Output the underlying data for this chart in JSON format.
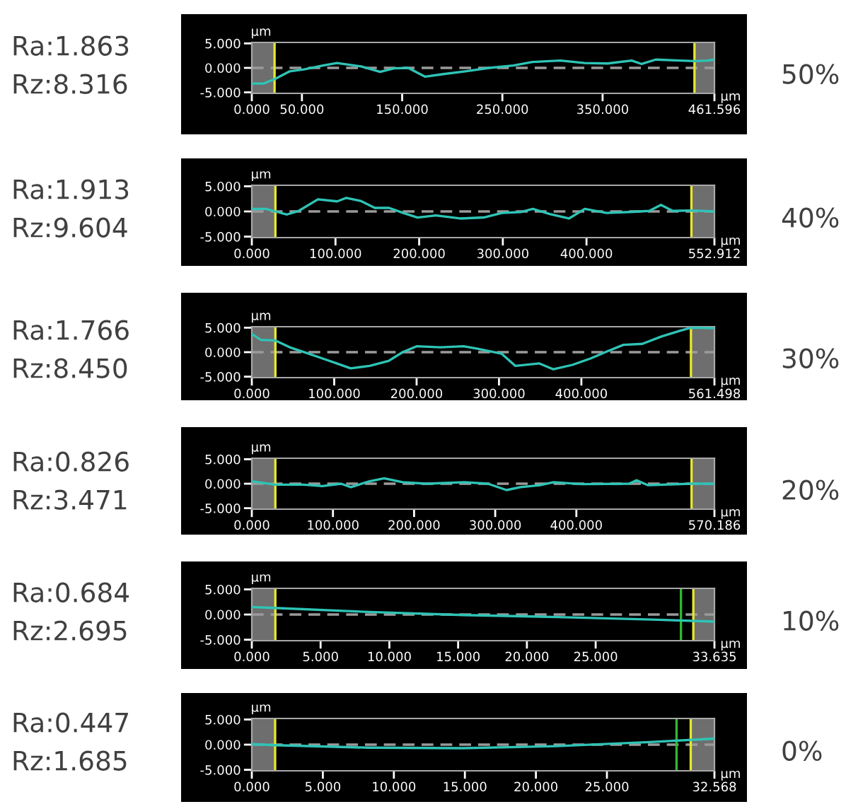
{
  "chart_data": [
    {
      "type": "line",
      "xlabel": "µm",
      "ylabel": "µm",
      "color": "#2ec4b6",
      "x": [
        0,
        11.8,
        22.7,
        37.9,
        52,
        71,
        85,
        109,
        128,
        142,
        156,
        173,
        190,
        213,
        237,
        261,
        280,
        308,
        332,
        355,
        379,
        389,
        403,
        427,
        442,
        455,
        461.596
      ],
      "values": [
        -3.2,
        -3.2,
        -2.3,
        -0.7,
        -0.3,
        0.5,
        1.0,
        0.3,
        -0.8,
        -0.1,
        0,
        -1.8,
        -1.3,
        -0.7,
        0,
        0.5,
        1.2,
        1.5,
        1.0,
        0.9,
        1.5,
        0.8,
        1.7,
        1.5,
        1.4,
        1.5,
        1.7
      ],
      "xlim": [
        0,
        461.596
      ],
      "xticks": [
        {
          "value": 0,
          "label": "0.000"
        },
        {
          "value": 50,
          "label": "50.000"
        },
        {
          "value": 150,
          "label": "150.000"
        },
        {
          "value": 250,
          "label": "250.000"
        },
        {
          "value": 350,
          "label": "350.000"
        },
        {
          "value": 461.596,
          "label": "461.596"
        }
      ],
      "ylim": [
        -5.2,
        5.2
      ],
      "yticks": [
        {
          "value": -5,
          "label": "-5.000"
        },
        {
          "value": 0,
          "label": "0.000"
        },
        {
          "value": 5,
          "label": "5.000"
        }
      ],
      "ref_lines": [
        {
          "axis": "y",
          "value": 0,
          "color": "#9a9a9a",
          "line_style": "dashed"
        },
        {
          "axis": "x",
          "value": 22.7,
          "color": "#e6e62e"
        },
        {
          "axis": "x",
          "value": 441.7,
          "color": "#e6e62e"
        }
      ],
      "bands": [
        {
          "axis": "x",
          "from": 0,
          "to": 22.7,
          "color": "#6e6e6e"
        },
        {
          "axis": "x",
          "from": 441.7,
          "to": 461.596,
          "color": "#6e6e6e"
        }
      ],
      "annotations": [
        "Ra:1.863",
        "Rz:8.316",
        "50%"
      ]
    },
    {
      "type": "line",
      "xlabel": "µm",
      "ylabel": "µm",
      "color": "#2ec4b6",
      "x": [
        0,
        17,
        28,
        42,
        56,
        79,
        102,
        113,
        130,
        147,
        164,
        181,
        198,
        220,
        249,
        277,
        299,
        322,
        336,
        356,
        379,
        398,
        424,
        452,
        475,
        489,
        503,
        525,
        552.912
      ],
      "values": [
        0.5,
        0.5,
        0,
        -0.6,
        0.1,
        2.4,
        2.0,
        2.7,
        2.1,
        0.7,
        0.7,
        -0.3,
        -1.2,
        -0.8,
        -1.4,
        -1.2,
        -0.3,
        -0.1,
        0.5,
        -0.5,
        -1.4,
        0.5,
        -0.3,
        -0.1,
        0.1,
        1.3,
        0.1,
        0.2,
        0
      ],
      "xlim": [
        0,
        552.912
      ],
      "xticks": [
        {
          "value": 0,
          "label": "0.000"
        },
        {
          "value": 100,
          "label": "100.000"
        },
        {
          "value": 200,
          "label": "200.000"
        },
        {
          "value": 300,
          "label": "300.000"
        },
        {
          "value": 400,
          "label": "400.000"
        },
        {
          "value": 552.912,
          "label": "552.912"
        }
      ],
      "ylim": [
        -5.2,
        5.2
      ],
      "yticks": [
        {
          "value": -5,
          "label": "-5.000"
        },
        {
          "value": 0,
          "label": "0.000"
        },
        {
          "value": 5,
          "label": "5.000"
        }
      ],
      "ref_lines": [
        {
          "axis": "y",
          "value": 0,
          "color": "#9a9a9a",
          "line_style": "dashed"
        },
        {
          "axis": "x",
          "value": 28.2,
          "color": "#e6e62e"
        },
        {
          "axis": "x",
          "value": 525.4,
          "color": "#e6e62e"
        }
      ],
      "bands": [
        {
          "axis": "x",
          "from": 0,
          "to": 28.2,
          "color": "#6e6e6e"
        },
        {
          "axis": "x",
          "from": 525.4,
          "to": 552.912,
          "color": "#6e6e6e"
        }
      ],
      "annotations": [
        "Ra:1.913",
        "Rz:9.604",
        "40%"
      ]
    },
    {
      "type": "line",
      "xlabel": "µm",
      "ylabel": "µm",
      "color": "#2ec4b6",
      "x": [
        0,
        11,
        28.6,
        46,
        69,
        86,
        103,
        120,
        143,
        166,
        183,
        200,
        229,
        257,
        274,
        303,
        320,
        349,
        366,
        389,
        411,
        429,
        451,
        474,
        497,
        520,
        533,
        561.498
      ],
      "values": [
        3.7,
        2.5,
        2.4,
        1.0,
        -0.3,
        -1.3,
        -2.3,
        -3.3,
        -2.8,
        -1.8,
        0,
        1.2,
        1.0,
        1.2,
        0.7,
        -0.3,
        -2.8,
        -2.3,
        -3.5,
        -2.6,
        -1.3,
        0,
        1.5,
        1.7,
        3.2,
        4.4,
        5.0,
        4.9
      ],
      "xlim": [
        0,
        561.498
      ],
      "xticks": [
        {
          "value": 0,
          "label": "0.000"
        },
        {
          "value": 100,
          "label": "100.000"
        },
        {
          "value": 200,
          "label": "200.000"
        },
        {
          "value": 300,
          "label": "300.000"
        },
        {
          "value": 400,
          "label": "400.000"
        },
        {
          "value": 561.498,
          "label": "561.498"
        }
      ],
      "ylim": [
        -5.2,
        5.2
      ],
      "yticks": [
        {
          "value": -5,
          "label": "-5.000"
        },
        {
          "value": 0,
          "label": "0.000"
        },
        {
          "value": 5,
          "label": "5.000"
        }
      ],
      "ref_lines": [
        {
          "axis": "y",
          "value": 0,
          "color": "#9a9a9a",
          "line_style": "dashed"
        },
        {
          "axis": "x",
          "value": 28.6,
          "color": "#e6e62e"
        },
        {
          "axis": "x",
          "value": 533,
          "color": "#e6e62e"
        }
      ],
      "bands": [
        {
          "axis": "x",
          "from": 0,
          "to": 28.6,
          "color": "#6e6e6e"
        },
        {
          "axis": "x",
          "from": 533,
          "to": 561.498,
          "color": "#6e6e6e"
        }
      ],
      "annotations": [
        "Ra:1.766",
        "Rz:8.450",
        "30%"
      ]
    },
    {
      "type": "line",
      "xlabel": "µm",
      "ylabel": "µm",
      "color": "#2ec4b6",
      "x": [
        0,
        29,
        64,
        87,
        110,
        122,
        145,
        163,
        186,
        215,
        262,
        291,
        314,
        331,
        355,
        372,
        407,
        465,
        474,
        488,
        541,
        570.186
      ],
      "values": [
        0.5,
        -0.2,
        -0.2,
        -0.5,
        0,
        -0.7,
        0.5,
        1.1,
        0.3,
        0,
        0.3,
        0,
        -1.3,
        -0.7,
        -0.3,
        0.3,
        -0.1,
        0,
        0.7,
        -0.3,
        0,
        0
      ],
      "xlim": [
        0,
        570.186
      ],
      "xticks": [
        {
          "value": 0,
          "label": "0.000"
        },
        {
          "value": 100,
          "label": "100.000"
        },
        {
          "value": 200,
          "label": "200.000"
        },
        {
          "value": 300,
          "label": "300.000"
        },
        {
          "value": 400,
          "label": "400.000"
        },
        {
          "value": 570.186,
          "label": "570.186"
        }
      ],
      "ylim": [
        -5.2,
        5.2
      ],
      "yticks": [
        {
          "value": -5,
          "label": "-5.000"
        },
        {
          "value": 0,
          "label": "0.000"
        },
        {
          "value": 5,
          "label": "5.000"
        }
      ],
      "ref_lines": [
        {
          "axis": "y",
          "value": 0,
          "color": "#9a9a9a",
          "line_style": "dashed"
        },
        {
          "axis": "x",
          "value": 29,
          "color": "#e6e62e"
        },
        {
          "axis": "x",
          "value": 542,
          "color": "#e6e62e"
        }
      ],
      "bands": [
        {
          "axis": "x",
          "from": 0,
          "to": 29,
          "color": "#6e6e6e"
        },
        {
          "axis": "x",
          "from": 542,
          "to": 570.186,
          "color": "#6e6e6e"
        }
      ],
      "annotations": [
        "Ra:0.826",
        "Rz:3.471",
        "20%"
      ]
    },
    {
      "type": "line",
      "xlabel": "µm",
      "ylabel": "µm",
      "color": "#2ec4b6",
      "x": [
        0,
        1.7,
        8.56,
        15.4,
        22.3,
        29.1,
        33.635
      ],
      "values": [
        1.5,
        1.3,
        0.5,
        -0.1,
        -0.5,
        -1.0,
        -1.4
      ],
      "xlim": [
        0,
        33.635
      ],
      "xticks": [
        {
          "value": 0,
          "label": "0.000"
        },
        {
          "value": 5,
          "label": "5.000"
        },
        {
          "value": 10,
          "label": "10.000"
        },
        {
          "value": 15,
          "label": "15.000"
        },
        {
          "value": 20,
          "label": "20.000"
        },
        {
          "value": 25,
          "label": "25.000"
        },
        {
          "value": 33.635,
          "label": "33.635"
        }
      ],
      "ylim": [
        -5.2,
        5.2
      ],
      "yticks": [
        {
          "value": -5,
          "label": "-5.000"
        },
        {
          "value": 0,
          "label": "0.000"
        },
        {
          "value": 5,
          "label": "5.000"
        }
      ],
      "ref_lines": [
        {
          "axis": "y",
          "value": 0,
          "color": "#9a9a9a",
          "line_style": "dashed"
        },
        {
          "axis": "x",
          "value": 1.71,
          "color": "#e6e62e"
        },
        {
          "axis": "x",
          "value": 31.2,
          "color": "#2eb82e"
        },
        {
          "axis": "x",
          "value": 32.1,
          "color": "#e6e62e"
        }
      ],
      "bands": [
        {
          "axis": "x",
          "from": 0,
          "to": 1.71,
          "color": "#6e6e6e"
        },
        {
          "axis": "x",
          "from": 32.1,
          "to": 33.635,
          "color": "#6e6e6e"
        }
      ],
      "annotations": [
        "Ra:0.684",
        "Rz:2.695",
        "10%"
      ]
    },
    {
      "type": "line",
      "xlabel": "µm",
      "ylabel": "µm",
      "color": "#2ec4b6",
      "x": [
        0,
        1.64,
        8.2,
        14.8,
        21.4,
        28.0,
        32.568
      ],
      "values": [
        0.1,
        -0.1,
        -0.6,
        -0.7,
        -0.3,
        0.5,
        1.2
      ],
      "xlim": [
        0,
        32.568
      ],
      "xticks": [
        {
          "value": 0,
          "label": "0.000"
        },
        {
          "value": 5,
          "label": "5.000"
        },
        {
          "value": 10,
          "label": "10.000"
        },
        {
          "value": 15,
          "label": "15.000"
        },
        {
          "value": 20,
          "label": "20.000"
        },
        {
          "value": 25,
          "label": "25.000"
        },
        {
          "value": 32.568,
          "label": "32.568"
        }
      ],
      "ylim": [
        -5.2,
        5.2
      ],
      "yticks": [
        {
          "value": -5,
          "label": "-5.000"
        },
        {
          "value": 0,
          "label": "0.000"
        },
        {
          "value": 5,
          "label": "5.000"
        }
      ],
      "ref_lines": [
        {
          "axis": "y",
          "value": 0,
          "color": "#9a9a9a",
          "line_style": "dashed"
        },
        {
          "axis": "x",
          "value": 1.64,
          "color": "#e6e62e"
        },
        {
          "axis": "x",
          "value": 29.9,
          "color": "#2eb82e"
        },
        {
          "axis": "x",
          "value": 30.9,
          "color": "#e6e62e"
        }
      ],
      "bands": [
        {
          "axis": "x",
          "from": 0,
          "to": 1.64,
          "color": "#6e6e6e"
        },
        {
          "axis": "x",
          "from": 30.9,
          "to": 32.568,
          "color": "#6e6e6e"
        }
      ],
      "annotations": [
        "Ra:0.447",
        "Rz:1.685",
        "0%"
      ]
    }
  ]
}
